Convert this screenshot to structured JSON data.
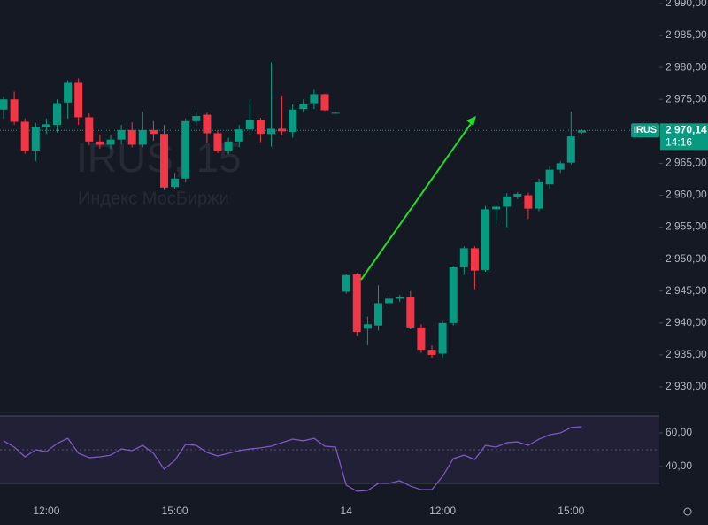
{
  "chart_data": [
    {
      "type": "candlestick",
      "title": "IRUS, 15",
      "subtitle": "Индекс МосБиржи",
      "categories": [
        null,
        null,
        null,
        null,
        "12:00",
        null,
        null,
        null,
        null,
        null,
        null,
        null,
        null,
        null,
        null,
        null,
        "15:00",
        null,
        null,
        null,
        null,
        null,
        null,
        null,
        null,
        null,
        null,
        null,
        null,
        null,
        null,
        null,
        "14",
        null,
        null,
        null,
        null,
        null,
        null,
        null,
        null,
        "12:00",
        null,
        null,
        null,
        null,
        null,
        null,
        null,
        null,
        null,
        null,
        null,
        "15:00",
        null
      ],
      "open": [
        2973.4,
        2975.0,
        2971.5,
        2967.0,
        2970.7,
        2971.0,
        2974.5,
        2977.6,
        2972.2,
        2968.4,
        2967.9,
        2968.7,
        2970.2,
        2967.9,
        2970.2,
        2969.6,
        2961.3,
        2962.6,
        2971.6,
        2972.6,
        2969.7,
        2966.9,
        2968.4,
        2970.3,
        2971.8,
        2969.6,
        2970.4,
        2969.9,
        2973.5,
        2974.4,
        2975.8,
        2972.9,
        2944.9,
        2947.6,
        2939.1,
        2939.6,
        2943.1,
        2943.8,
        2944.0,
        2939.3,
        2935.8,
        2935.2,
        2940.0,
        2948.7,
        2951.7,
        2948.3,
        2957.8,
        2958.2,
        2959.8,
        2960.0,
        2957.9,
        2961.7,
        2964.0,
        2965.1,
        2969.8
      ],
      "high": [
        2975.5,
        2976.2,
        2972.0,
        2971.3,
        2972.0,
        2975.0,
        2978.0,
        2978.3,
        2972.8,
        2969.5,
        2969.4,
        2971.0,
        2971.4,
        2973.0,
        2971.6,
        2971.0,
        2963.5,
        2972.0,
        2973.1,
        2972.9,
        2970.2,
        2969.0,
        2971.0,
        2974.8,
        2972.1,
        2980.8,
        2975.6,
        2974.2,
        2975.0,
        2976.5,
        2975.9,
        2973.0,
        2947.6,
        2947.8,
        2941.0,
        2945.9,
        2944.3,
        2944.4,
        2945.0,
        2939.8,
        2936.5,
        2940.3,
        2949.0,
        2952.0,
        2952.0,
        2958.3,
        2958.6,
        2960.3,
        2960.5,
        2960.4,
        2962.6,
        2964.5,
        2965.3,
        2973.1,
        2970.3
      ],
      "low": [
        2972.0,
        2971.0,
        2966.5,
        2965.3,
        2969.6,
        2969.8,
        2972.0,
        2971.0,
        2967.8,
        2967.3,
        2967.2,
        2968.0,
        2967.5,
        2967.5,
        2968.5,
        2960.8,
        2961.0,
        2962.0,
        2970.9,
        2968.2,
        2966.6,
        2966.4,
        2967.5,
        2969.7,
        2968.3,
        2967.6,
        2969.4,
        2969.0,
        2973.0,
        2973.5,
        2973.2,
        2972.8,
        2944.6,
        2938.0,
        2936.5,
        2938.8,
        2942.7,
        2943.3,
        2939.0,
        2935.3,
        2934.5,
        2934.6,
        2939.6,
        2947.5,
        2945.3,
        2948.0,
        2955.5,
        2955.0,
        2959.4,
        2956.3,
        2957.5,
        2961.0,
        2963.5,
        2964.8,
        2969.6
      ],
      "close": [
        2975.0,
        2971.5,
        2966.9,
        2970.7,
        2971.1,
        2974.4,
        2977.6,
        2972.2,
        2968.4,
        2967.9,
        2968.7,
        2970.2,
        2967.9,
        2970.2,
        2969.6,
        2961.2,
        2962.6,
        2971.6,
        2972.4,
        2969.7,
        2966.9,
        2968.4,
        2970.3,
        2971.8,
        2969.6,
        2970.4,
        2970.0,
        2973.4,
        2974.2,
        2975.8,
        2973.3,
        2972.9,
        2947.5,
        2938.6,
        2939.8,
        2943.1,
        2943.8,
        2944.0,
        2939.3,
        2935.8,
        2935.0,
        2940.0,
        2948.7,
        2951.7,
        2948.2,
        2957.8,
        2958.2,
        2959.8,
        2960.2,
        2957.9,
        2962.0,
        2964.0,
        2965.0,
        2969.2,
        2970.14
      ],
      "up_color": "#089981",
      "down_color": "#f23645",
      "ylim": [
        2926.12,
        2990.55
      ],
      "yticks": [
        {
          "value": 2930,
          "label": "2 930,00"
        },
        {
          "value": 2935,
          "label": "2 935,00"
        },
        {
          "value": 2940,
          "label": "2 940,00"
        },
        {
          "value": 2945,
          "label": "2 945,00"
        },
        {
          "value": 2950,
          "label": "2 950,00"
        },
        {
          "value": 2955,
          "label": "2 955,00"
        },
        {
          "value": 2960,
          "label": "2 960,00"
        },
        {
          "value": 2965,
          "label": "2 965,00"
        },
        {
          "value": 2970,
          "label": "2 970,00"
        },
        {
          "value": 2975,
          "label": "2 975,00"
        },
        {
          "value": 2980,
          "label": "2 980,00"
        },
        {
          "value": 2985,
          "label": "2 985,00"
        },
        {
          "value": 2990,
          "label": "2 990,00"
        }
      ],
      "symbol": "IRUS",
      "last_price": {
        "value": 2970.14,
        "label": "2 970,14"
      },
      "countdown": "14:16"
    },
    {
      "type": "line",
      "color": "#7e57c2",
      "values": [
        55.3,
        51.6,
        45.8,
        50.0,
        48.9,
        53.7,
        56.8,
        47.9,
        45.3,
        45.8,
        46.8,
        50.5,
        49.5,
        52.6,
        47.9,
        38.4,
        43.7,
        53.2,
        52.6,
        48.4,
        46.3,
        47.9,
        49.5,
        50.5,
        51.1,
        52.1,
        54.2,
        56.3,
        55.3,
        56.8,
        52.1,
        51.6,
        29.0,
        25.3,
        25.8,
        30.0,
        30.0,
        31.6,
        28.4,
        26.3,
        26.3,
        34.2,
        44.7,
        46.8,
        44.2,
        52.6,
        51.6,
        54.2,
        54.7,
        52.6,
        56.3,
        58.9,
        60.0,
        63.2,
        63.7
      ],
      "ylim": [
        21.6,
        74.2
      ],
      "band": [
        30,
        70
      ],
      "midline": 50,
      "yticks": [
        {
          "value": 40,
          "label": "40,00"
        },
        {
          "value": 60,
          "label": "60,00"
        }
      ]
    }
  ]
}
